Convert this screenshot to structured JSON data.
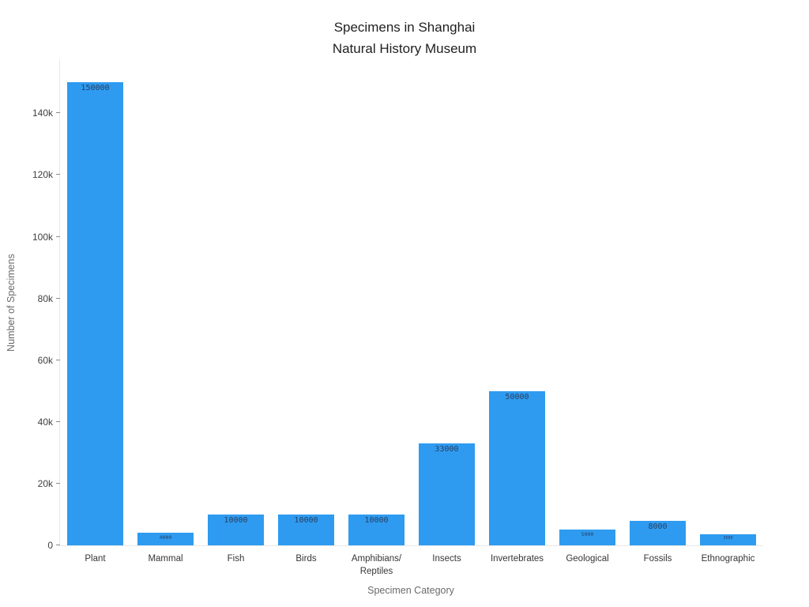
{
  "chart_data": {
    "type": "bar",
    "title": "Specimens in Shanghai\nNatural History Museum",
    "xlabel": "Specimen Category",
    "ylabel": "Number of Specimens",
    "categories": [
      "Plant",
      "Mammal",
      "Fish",
      "Birds",
      "Amphibians/\nReptiles",
      "Insects",
      "Invertebrates",
      "Geological",
      "Fossils",
      "Ethnographic"
    ],
    "values": [
      150000,
      4000,
      10000,
      10000,
      10000,
      33000,
      50000,
      5000,
      8000,
      3500
    ],
    "bar_labels": [
      "150000",
      "4000",
      "10000",
      "10000",
      "10000",
      "33000",
      "50000",
      "5000",
      "8000",
      "3500"
    ],
    "bar_color": "#2E9BF0",
    "bar_label_color": "#2a3f5f",
    "ylim": [
      0,
      157500
    ],
    "yticks": [
      {
        "value": 0,
        "label": "0"
      },
      {
        "value": 20000,
        "label": "20k"
      },
      {
        "value": 40000,
        "label": "40k"
      },
      {
        "value": 60000,
        "label": "60k"
      },
      {
        "value": 80000,
        "label": "80k"
      },
      {
        "value": 100000,
        "label": "100k"
      },
      {
        "value": 120000,
        "label": "120k"
      },
      {
        "value": 140000,
        "label": "140k"
      }
    ],
    "grid": false,
    "legend": "none",
    "background": "#ffffff"
  }
}
